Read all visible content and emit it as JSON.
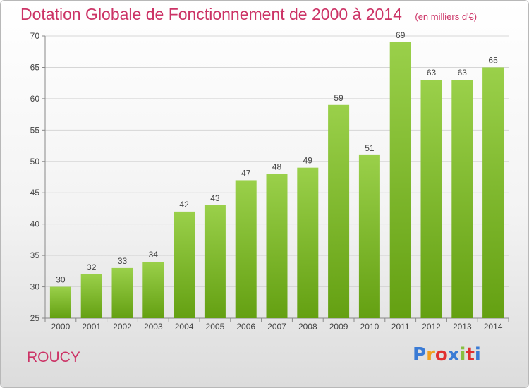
{
  "header": {
    "title": "Dotation Globale de Fonctionnement de 2000 à 2014",
    "subtitle": "(en milliers d'€)"
  },
  "footer": {
    "commune": "ROUCY",
    "logo_letters": [
      "P",
      "r",
      "o",
      "x",
      "i",
      "t",
      "i"
    ],
    "logo_colors": [
      "#3a7bd5",
      "#f0a020",
      "#e03030",
      "#3a7bd5",
      "#88c040",
      "#e03030",
      "#3a7bd5"
    ]
  },
  "colors": {
    "bar_top": "#9ad04a",
    "bar_bottom": "#64a012",
    "title": "#cc3366"
  },
  "chart_data": {
    "type": "bar",
    "categories": [
      "2000",
      "2001",
      "2002",
      "2003",
      "2004",
      "2005",
      "2006",
      "2007",
      "2008",
      "2009",
      "2010",
      "2011",
      "2012",
      "2013",
      "2014"
    ],
    "values": [
      30,
      32,
      33,
      34,
      42,
      43,
      47,
      48,
      49,
      59,
      51,
      69,
      63,
      63,
      65
    ],
    "ylim": [
      25,
      70
    ],
    "yticks": [
      25,
      30,
      35,
      40,
      45,
      50,
      55,
      60,
      65,
      70
    ],
    "grid": "horizontal",
    "legend": "none"
  }
}
